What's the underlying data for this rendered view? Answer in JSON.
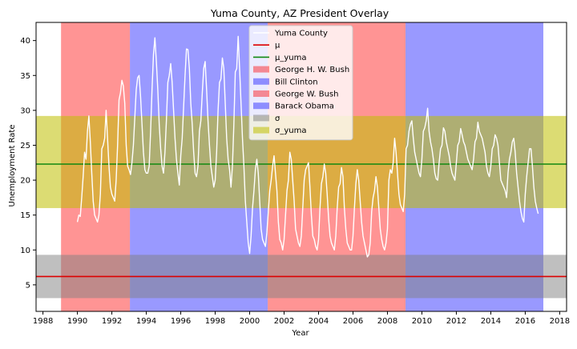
{
  "chart_data": {
    "type": "line",
    "title": "Yuma County, AZ President Overlay",
    "xlabel": "Year",
    "ylabel": "Unemployment Rate",
    "xlim": [
      1987.6,
      2018.4
    ],
    "ylim": [
      1.2,
      42.6
    ],
    "x_ticks": [
      1988,
      1990,
      1992,
      1994,
      1996,
      1998,
      2000,
      2002,
      2004,
      2006,
      2008,
      2010,
      2012,
      2014,
      2016,
      2018
    ],
    "y_ticks": [
      5,
      10,
      15,
      20,
      25,
      30,
      35,
      40
    ],
    "grid": false,
    "legend_position": "top-center",
    "presidencies": [
      {
        "name": "George H. W. Bush",
        "start": 1989.05,
        "end": 1993.05,
        "color": "#ff0000",
        "alpha": 0.42
      },
      {
        "name": "Bill Clinton",
        "start": 1993.05,
        "end": 2001.05,
        "color": "#0000ff",
        "alpha": 0.4
      },
      {
        "name": "George W. Bush",
        "start": 2001.05,
        "end": 2009.05,
        "color": "#ff0000",
        "alpha": 0.42
      },
      {
        "name": "Barack Obama",
        "start": 2009.05,
        "end": 2017.05,
        "color": "#0000ff",
        "alpha": 0.4
      }
    ],
    "mean_line": {
      "name": "μ",
      "value": 6.2,
      "color": "#dd0000"
    },
    "yuma_mean_line": {
      "name": "μ_yuma",
      "value": 22.3,
      "color": "#118811"
    },
    "sigma_band": {
      "name": "σ",
      "low": 3.1,
      "high": 9.3,
      "color": "#808080",
      "alpha": 0.5
    },
    "yuma_sigma_band": {
      "name": "σ_yuma",
      "low": 16.0,
      "high": 29.2,
      "color": "#bfbf00",
      "alpha": 0.55
    },
    "series": [
      {
        "name": "Yuma County",
        "color": "#ffffff",
        "x_start": 1990.0,
        "x_step": 0.0833333,
        "values": [
          14.0,
          15.0,
          14.8,
          17.5,
          20.5,
          24.0,
          23.0,
          27.0,
          29.2,
          25.5,
          21.0,
          17.0,
          15.0,
          14.5,
          14.0,
          15.0,
          18.0,
          24.5,
          25.0,
          26.0,
          30.0,
          26.0,
          22.0,
          19.0,
          18.0,
          17.5,
          17.0,
          20.0,
          25.0,
          31.5,
          32.5,
          34.3,
          33.5,
          31.0,
          25.0,
          22.0,
          21.5,
          20.8,
          22.5,
          25.0,
          29.0,
          33.0,
          34.7,
          35.0,
          32.0,
          28.0,
          24.0,
          21.5,
          21.0,
          21.0,
          22.0,
          27.0,
          33.0,
          38.0,
          40.4,
          37.0,
          33.0,
          28.0,
          24.5,
          22.0,
          21.0,
          24.0,
          28.5,
          34.0,
          35.0,
          36.7,
          34.0,
          30.0,
          26.0,
          23.0,
          21.0,
          19.3,
          23.5,
          26.0,
          30.5,
          35.0,
          38.8,
          38.7,
          36.0,
          31.0,
          28.0,
          24.0,
          21.0,
          20.5,
          22.0,
          27.0,
          28.5,
          32.5,
          36.0,
          37.0,
          33.0,
          28.5,
          25.0,
          22.0,
          20.5,
          19.0,
          20.0,
          24.0,
          30.0,
          34.0,
          34.5,
          37.5,
          36.0,
          31.0,
          26.0,
          23.0,
          21.5,
          19.0,
          22.0,
          28.0,
          35.5,
          36.0,
          40.6,
          36.0,
          31.0,
          26.0,
          22.0,
          17.0,
          14.0,
          11.0,
          9.5,
          12.0,
          16.0,
          18.5,
          21.5,
          23.0,
          21.0,
          17.0,
          13.0,
          11.5,
          11.0,
          10.5,
          12.5,
          15.5,
          18.5,
          20.0,
          22.0,
          23.5,
          21.0,
          18.5,
          14.0,
          11.5,
          11.0,
          10.0,
          11.5,
          15.0,
          18.5,
          20.0,
          24.0,
          23.0,
          20.0,
          17.0,
          13.0,
          12.0,
          11.0,
          10.5,
          12.0,
          16.0,
          20.0,
          21.5,
          22.0,
          22.5,
          19.0,
          15.0,
          12.0,
          11.5,
          10.5,
          10.0,
          11.5,
          16.0,
          19.5,
          20.5,
          22.3,
          21.0,
          18.0,
          14.5,
          12.0,
          11.0,
          10.5,
          10.0,
          12.0,
          16.0,
          19.0,
          19.5,
          21.8,
          20.5,
          16.0,
          13.0,
          11.0,
          10.5,
          10.0,
          10.0,
          12.0,
          16.0,
          19.5,
          21.5,
          20.0,
          17.0,
          14.0,
          12.0,
          11.0,
          10.0,
          9.0,
          9.3,
          11.0,
          15.5,
          17.5,
          18.5,
          20.5,
          19.0,
          16.0,
          13.0,
          11.5,
          10.5,
          10.0,
          11.0,
          13.0,
          20.0,
          21.5,
          21.0,
          22.5,
          26.0,
          24.0,
          21.0,
          18.0,
          16.5,
          16.0,
          15.5,
          18.0,
          24.5,
          25.0,
          27.0,
          28.0,
          28.5,
          26.0,
          24.0,
          23.0,
          22.0,
          21.0,
          20.5,
          23.0,
          27.0,
          27.5,
          28.5,
          30.3,
          27.0,
          25.5,
          24.5,
          23.0,
          21.0,
          20.2,
          20.0,
          22.5,
          24.5,
          25.0,
          27.5,
          27.0,
          25.5,
          24.5,
          23.5,
          22.0,
          21.0,
          20.5,
          20.0,
          22.5,
          25.0,
          25.5,
          27.4,
          26.5,
          25.5,
          25.0,
          24.0,
          23.0,
          22.5,
          22.0,
          21.5,
          23.0,
          25.5,
          26.0,
          28.3,
          27.0,
          26.5,
          26.0,
          25.0,
          24.0,
          22.0,
          21.0,
          20.5,
          22.0,
          24.5,
          25.0,
          26.5,
          26.0,
          25.0,
          22.5,
          20.0,
          19.5,
          19.0,
          18.5,
          17.5,
          21.0,
          23.0,
          24.0,
          25.5,
          26.0,
          24.0,
          21.0,
          19.0,
          17.0,
          15.5,
          14.5,
          14.0,
          18.0,
          20.5,
          22.5,
          24.5,
          24.5,
          22.0,
          19.0,
          17.0,
          16.0,
          15.2
        ]
      }
    ]
  },
  "legend": {
    "items": [
      {
        "label": "Yuma County",
        "kind": "line",
        "color": "#ffffff",
        "alpha": 1
      },
      {
        "label": "μ",
        "kind": "line",
        "color": "#dd0000",
        "alpha": 1
      },
      {
        "label": "μ_yuma",
        "kind": "line",
        "color": "#118811",
        "alpha": 1
      },
      {
        "label": "George H. W. Bush",
        "kind": "patch",
        "color": "#ff0000",
        "alpha": 0.42
      },
      {
        "label": "Bill Clinton",
        "kind": "patch",
        "color": "#0000ff",
        "alpha": 0.4
      },
      {
        "label": "George W. Bush",
        "kind": "patch",
        "color": "#ff0000",
        "alpha": 0.42
      },
      {
        "label": "Barack Obama",
        "kind": "patch",
        "color": "#0000ff",
        "alpha": 0.4
      },
      {
        "label": "σ",
        "kind": "patch",
        "color": "#808080",
        "alpha": 0.5
      },
      {
        "label": "σ_yuma",
        "kind": "patch",
        "color": "#bfbf00",
        "alpha": 0.55
      }
    ]
  }
}
